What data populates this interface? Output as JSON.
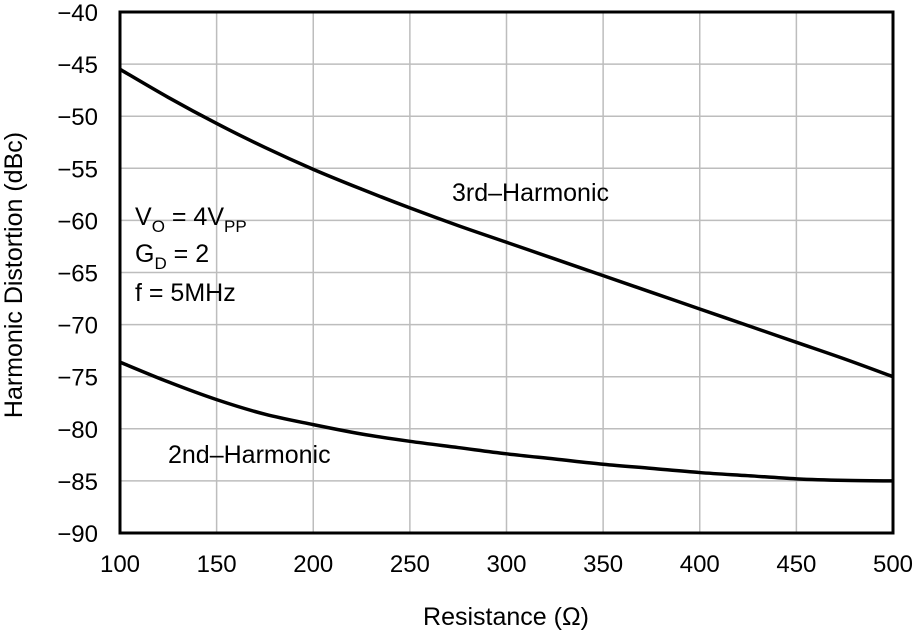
{
  "chart_data": {
    "type": "line",
    "title": "",
    "xlabel": "Resistance (Ω)",
    "ylabel": "Harmonic Distortion (dBc)",
    "xlim": [
      100,
      500
    ],
    "ylim": [
      -90,
      -40
    ],
    "x_ticks": [
      100,
      150,
      200,
      250,
      300,
      350,
      400,
      450,
      500
    ],
    "y_ticks": [
      -40,
      -45,
      -50,
      -55,
      -60,
      -65,
      -70,
      -75,
      -80,
      -85,
      -90
    ],
    "x_tick_labels": [
      "100",
      "150",
      "200",
      "250",
      "300",
      "350",
      "400",
      "450",
      "500"
    ],
    "y_tick_labels": [
      "−40",
      "−45",
      "−50",
      "−55",
      "−60",
      "−65",
      "−70",
      "−75",
      "−80",
      "−85",
      "−90"
    ],
    "grid": true,
    "series": [
      {
        "name": "3rd–Harmonic",
        "x": [
          100,
          125,
          150,
          175,
          200,
          225,
          250,
          275,
          300,
          325,
          350,
          375,
          400,
          425,
          450,
          475,
          500
        ],
        "y": [
          -45.5,
          -48.2,
          -50.7,
          -53.0,
          -55.1,
          -57.0,
          -58.8,
          -60.5,
          -62.1,
          -63.7,
          -65.3,
          -66.9,
          -68.5,
          -70.1,
          -71.7,
          -73.3,
          -75.0
        ]
      },
      {
        "name": "2nd–Harmonic",
        "x": [
          100,
          125,
          150,
          175,
          200,
          225,
          250,
          275,
          300,
          325,
          350,
          375,
          400,
          425,
          450,
          475,
          500
        ],
        "y": [
          -73.6,
          -75.5,
          -77.2,
          -78.6,
          -79.6,
          -80.5,
          -81.2,
          -81.8,
          -82.4,
          -82.9,
          -83.4,
          -83.8,
          -84.2,
          -84.5,
          -84.8,
          -84.95,
          -85.0
        ]
      }
    ],
    "annotations": {
      "series_3rd": "3rd–Harmonic",
      "series_2nd": "2nd–Harmonic",
      "cond_vo_main": "V",
      "cond_vo_sub": "O",
      "cond_vo_eq": " = 4V",
      "cond_vo_unit_sub": "PP",
      "cond_gd_main": "G",
      "cond_gd_sub": "D",
      "cond_gd_eq": " = 2",
      "cond_f": "f = 5MHz"
    }
  }
}
